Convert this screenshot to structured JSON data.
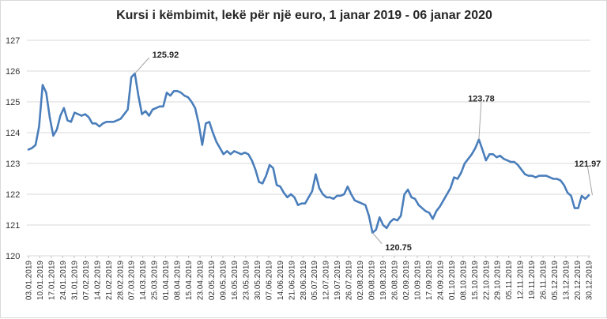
{
  "chart_data": {
    "type": "line",
    "title": "Kursi i këmbimit, lekë për një euro, 1 janar 2019 - 06 janar 2020",
    "xlabel": "",
    "ylabel": "",
    "ylim": [
      120,
      127
    ],
    "yticks": [
      "120",
      "121",
      "122",
      "123",
      "124",
      "125",
      "126",
      "127"
    ],
    "grid": true,
    "legend": "none",
    "line_color": "#4a7ebb",
    "grid_color": "#d9d9d9",
    "xticks": [
      "03.01.2019",
      "10.01.2019",
      "17.01.2019",
      "24.01.2019",
      "31.01.2019",
      "07.02.2019",
      "14.02.2019",
      "21.02.2019",
      "28.02.2019",
      "07.03.2019",
      "14.03.2019",
      "25.03.2019",
      "01.04.2019",
      "08.04.2019",
      "15.04.2019",
      "23.04.2019",
      "02.05.2019",
      "09.05.2019",
      "16.05.2019",
      "23.05.2019",
      "30.05.2019",
      "07.06.2019",
      "14.06.2019",
      "21.06.2019",
      "28.06.2019",
      "05.07.2019",
      "12.07.2019",
      "19.07.2019",
      "26.07.2019",
      "02.08.2019",
      "09.08.2019",
      "19.08.2019",
      "26.08.2019",
      "02.09.2019",
      "10.09.2019",
      "17.09.2019",
      "24.09.2019",
      "01.10.2019",
      "08.10.2019",
      "15.10.2019",
      "22.10.2019",
      "29.10.2019",
      "05.11.2019",
      "12.11.2019",
      "19.11.2019",
      "26.11.2019",
      "05.12.2019",
      "13.12.2019",
      "20.12.2019",
      "30.12.2019"
    ],
    "series": [
      {
        "values": [
          123.45,
          123.5,
          123.6,
          124.2,
          125.55,
          125.3,
          124.5,
          123.9,
          124.1,
          124.55,
          124.8,
          124.4,
          124.35,
          124.65,
          124.6,
          124.55,
          124.6,
          124.5,
          124.3,
          124.3,
          124.2,
          124.3,
          124.35,
          124.35,
          124.35,
          124.4,
          124.45,
          124.6,
          124.75,
          125.8,
          125.92,
          125.2,
          124.6,
          124.7,
          124.55,
          124.75,
          124.8,
          124.85,
          124.85,
          125.3,
          125.2,
          125.35,
          125.35,
          125.3,
          125.2,
          125.15,
          125.0,
          124.8,
          124.3,
          123.6,
          124.3,
          124.35,
          124.0,
          123.7,
          123.5,
          123.3,
          123.4,
          123.3,
          123.4,
          123.35,
          123.3,
          123.35,
          123.3,
          123.1,
          122.8,
          122.4,
          122.35,
          122.6,
          122.95,
          122.85,
          122.3,
          122.25,
          122.05,
          121.9,
          122.0,
          121.9,
          121.65,
          121.7,
          121.7,
          121.9,
          122.1,
          122.65,
          122.2,
          122.0,
          121.9,
          121.9,
          121.85,
          121.95,
          121.95,
          122.0,
          122.25,
          122.0,
          121.8,
          121.75,
          121.7,
          121.65,
          121.3,
          120.75,
          120.85,
          121.25,
          121.0,
          120.9,
          121.1,
          121.2,
          121.15,
          121.3,
          122.0,
          122.15,
          121.9,
          121.85,
          121.65,
          121.55,
          121.45,
          121.4,
          121.2,
          121.45,
          121.6,
          121.8,
          122.0,
          122.2,
          122.55,
          122.5,
          122.7,
          123.0,
          123.15,
          123.3,
          123.5,
          123.78,
          123.45,
          123.1,
          123.3,
          123.3,
          123.2,
          123.25,
          123.15,
          123.1,
          123.05,
          123.05,
          122.95,
          122.8,
          122.65,
          122.6,
          122.6,
          122.55,
          122.6,
          122.6,
          122.6,
          122.55,
          122.5,
          122.5,
          122.45,
          122.3,
          122.05,
          121.95,
          121.55,
          121.55,
          121.95,
          121.85,
          121.97
        ]
      }
    ],
    "annotations": [
      {
        "label": "125.92",
        "x_index": 30,
        "value": 125.92
      },
      {
        "label": "120.75",
        "x_index": 97,
        "value": 120.75
      },
      {
        "label": "123.78",
        "x_index": 127,
        "value": 123.78
      },
      {
        "label": "121.97",
        "x_index": 159,
        "value": 121.97
      }
    ]
  }
}
